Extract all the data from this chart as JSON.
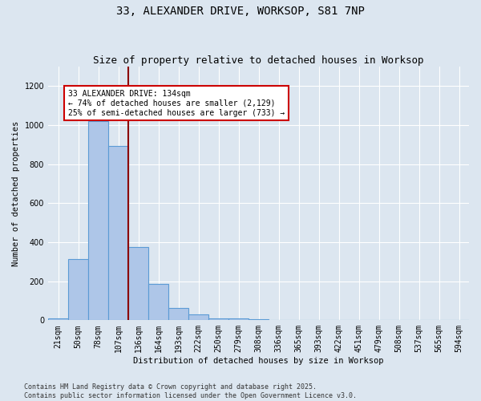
{
  "title": "33, ALEXANDER DRIVE, WORKSOP, S81 7NP",
  "subtitle": "Size of property relative to detached houses in Worksop",
  "xlabel": "Distribution of detached houses by size in Worksop",
  "ylabel": "Number of detached properties",
  "footer_line1": "Contains HM Land Registry data © Crown copyright and database right 2025.",
  "footer_line2": "Contains public sector information licensed under the Open Government Licence v3.0.",
  "bin_labels": [
    "21sqm",
    "50sqm",
    "78sqm",
    "107sqm",
    "136sqm",
    "164sqm",
    "193sqm",
    "222sqm",
    "250sqm",
    "279sqm",
    "308sqm",
    "336sqm",
    "365sqm",
    "393sqm",
    "422sqm",
    "451sqm",
    "479sqm",
    "508sqm",
    "537sqm",
    "565sqm",
    "594sqm"
  ],
  "bar_values": [
    10,
    315,
    1020,
    895,
    375,
    185,
    65,
    30,
    10,
    10,
    5,
    0,
    0,
    0,
    0,
    0,
    0,
    0,
    0,
    0,
    0
  ],
  "bar_color": "#aec6e8",
  "bar_edge_color": "#5b9bd5",
  "property_line_index": 4,
  "property_line_color": "#8b0000",
  "annotation_text": "33 ALEXANDER DRIVE: 134sqm\n← 74% of detached houses are smaller (2,129)\n25% of semi-detached houses are larger (733) →",
  "annotation_box_color": "#ffffff",
  "annotation_box_edge_color": "#cc0000",
  "ylim": [
    0,
    1300
  ],
  "yticks": [
    0,
    200,
    400,
    600,
    800,
    1000,
    1200
  ],
  "background_color": "#dce6f0",
  "plot_bg_color": "#dce6f0",
  "title_fontsize": 10,
  "subtitle_fontsize": 9,
  "axis_label_fontsize": 7.5,
  "tick_fontsize": 7,
  "annotation_fontsize": 7,
  "footer_fontsize": 6
}
